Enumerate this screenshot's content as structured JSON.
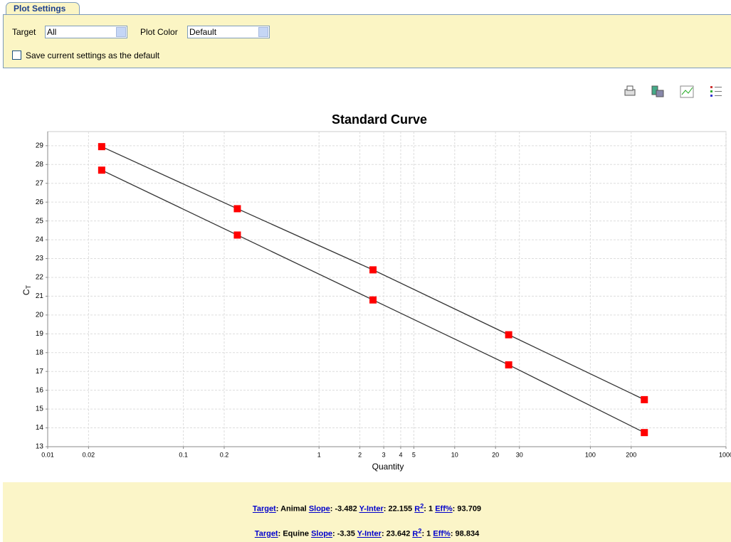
{
  "settings": {
    "tab": "Plot Settings",
    "target_label": "Target",
    "target_value": "All",
    "color_label": "Plot Color",
    "color_value": "Default",
    "save_label": "Save current settings as the default"
  },
  "chart_data": {
    "type": "line",
    "title": "Standard Curve",
    "xlabel": "Quantity",
    "ylabel": "C",
    "ylabel_sub": "T",
    "x": [
      0.025,
      0.25,
      2.5,
      25,
      250
    ],
    "xscale": "log",
    "xlim": [
      0.01,
      1000
    ],
    "xticks": [
      0.01,
      0.02,
      0.1,
      0.2,
      1,
      2,
      3,
      4,
      5,
      10,
      20,
      30,
      100,
      200,
      1000
    ],
    "ylim": [
      13,
      29.75
    ],
    "yticks": [
      13,
      14,
      15,
      16,
      17,
      18,
      19,
      20,
      21,
      22,
      23,
      24,
      25,
      26,
      27,
      28,
      29
    ],
    "grid": true,
    "series": [
      {
        "color": "#333333",
        "marker_color": "#ff0000",
        "values": [
          28.95,
          25.65,
          22.4,
          18.95,
          15.5
        ]
      },
      {
        "color": "#333333",
        "marker_color": "#ff0000",
        "values": [
          27.7,
          24.25,
          20.8,
          17.35,
          13.75
        ]
      }
    ]
  },
  "stats": {
    "labels": {
      "target": "Target",
      "slope": "Slope",
      "yinter": "Y-Inter",
      "r": "R",
      "r_sup": "2",
      "eff": "Eff%",
      "separator": ":"
    },
    "rows": [
      {
        "target": "Animal",
        "slope": -3.482,
        "yinter": 22.155,
        "r2": 1,
        "eff": 93.709
      },
      {
        "target": "Equine",
        "slope": -3.35,
        "yinter": 23.642,
        "r2": 1,
        "eff": 98.834
      }
    ]
  }
}
